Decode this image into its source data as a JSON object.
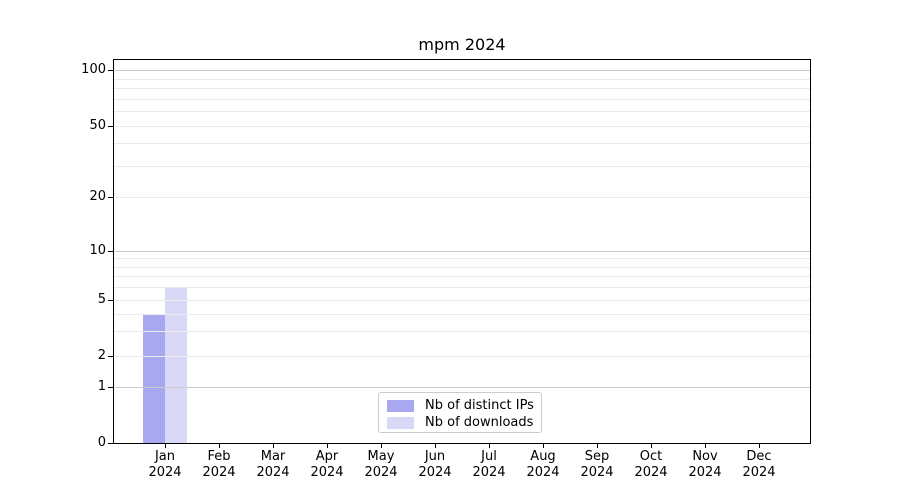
{
  "figure": {
    "background": "#ffffff"
  },
  "chart_data": {
    "type": "bar",
    "title": "mpm 2024",
    "categories": [
      "Jan",
      "Feb",
      "Mar",
      "Apr",
      "May",
      "Jun",
      "Jul",
      "Aug",
      "Sep",
      "Oct",
      "Nov",
      "Dec"
    ],
    "category_year": "2024",
    "series": [
      {
        "name": "Nb of distinct IPs",
        "color": "#a8a8f0",
        "values": [
          4,
          0,
          0,
          0,
          0,
          0,
          0,
          0,
          0,
          0,
          0,
          0
        ]
      },
      {
        "name": "Nb of downloads",
        "color": "#d9d9f7",
        "values": [
          6,
          0,
          0,
          0,
          0,
          0,
          0,
          0,
          0,
          0,
          0,
          0
        ]
      }
    ],
    "xlabel": "",
    "ylabel": "",
    "yscale": "symlog",
    "ylim": [
      0,
      113
    ],
    "yticks": [
      0,
      1,
      2,
      5,
      10,
      20,
      50,
      100
    ],
    "minor_gridlines": [
      2,
      3,
      4,
      5,
      6,
      7,
      8,
      9,
      20,
      30,
      40,
      50,
      60,
      70,
      80,
      90
    ],
    "major_gridlines": [
      1,
      10,
      100
    ],
    "grid": true,
    "grid_over_bars": true,
    "legend_position": "lower-center",
    "legend_entries": [
      "Nb of distinct IPs",
      "Nb of downloads"
    ],
    "colors": {
      "frame": "#000000",
      "minor_grid": "#ebebeb",
      "major_grid": "#c9c9c9",
      "text": "#000000"
    }
  }
}
